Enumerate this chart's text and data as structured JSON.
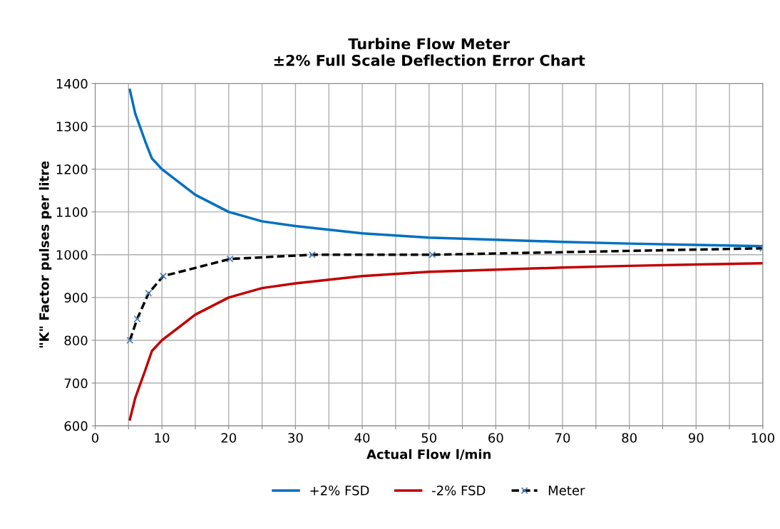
{
  "chart_data": {
    "type": "line",
    "title": "Turbine Flow Meter\n±2% Full Scale Deflection Error Chart",
    "xlabel": "Actual Flow l/min",
    "ylabel": "\"K\" Factor pulses per litre",
    "xlim": [
      0,
      100
    ],
    "ylim": [
      600,
      1400
    ],
    "xticks": [
      0,
      {
        "value": 5,
        "label": null
      },
      10,
      {
        "value": 15,
        "label": null
      },
      20,
      {
        "value": 25,
        "label": null
      },
      30,
      {
        "value": 35,
        "label": null
      },
      40,
      {
        "value": 45,
        "label": null
      },
      50,
      {
        "value": 55,
        "label": null
      },
      60,
      {
        "value": 65,
        "label": null
      },
      70,
      {
        "value": 75,
        "label": null
      },
      80,
      {
        "value": 85,
        "label": null
      },
      90,
      {
        "value": 95,
        "label": null
      },
      100
    ],
    "yticks": [
      600,
      700,
      800,
      900,
      1000,
      1100,
      1200,
      1300,
      1400
    ],
    "grid": true,
    "legend": "bottom",
    "series": [
      {
        "name": "+2% FSD",
        "color": "#0070c0",
        "x": [
          5.2,
          6,
          7.5,
          8.5,
          10,
          15,
          20,
          25,
          30,
          40,
          50,
          60,
          70,
          80,
          90,
          100
        ],
        "values": [
          1385,
          1330,
          1265,
          1225,
          1200,
          1140,
          1100,
          1078,
          1067,
          1050,
          1040,
          1035,
          1030,
          1026,
          1023,
          1020
        ]
      },
      {
        "name": "-2% FSD",
        "color": "#c00000",
        "x": [
          5.2,
          6,
          7.5,
          8.5,
          10,
          15,
          20,
          25,
          30,
          40,
          50,
          60,
          70,
          80,
          90,
          100
        ],
        "values": [
          615,
          665,
          730,
          775,
          800,
          860,
          900,
          922,
          933,
          950,
          960,
          965,
          970,
          974,
          977,
          980
        ]
      },
      {
        "name": "Meter",
        "color": "#000000",
        "marker": "cross",
        "line_style": "dashed",
        "x": [
          5.2,
          6.3,
          8,
          10.2,
          20.2,
          32.5,
          50.5,
          100
        ],
        "values": [
          800,
          850,
          910,
          950,
          990,
          1000,
          1000,
          1015
        ]
      }
    ]
  }
}
